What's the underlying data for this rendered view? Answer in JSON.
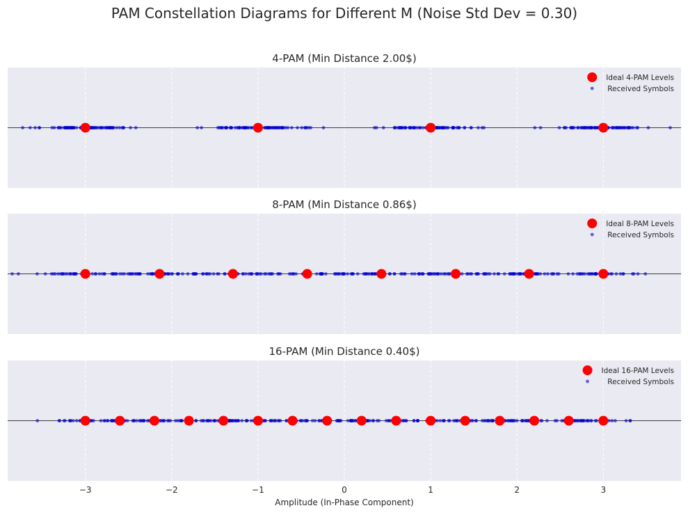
{
  "figure": {
    "title": "PAM Constellation Diagrams for Different M (Noise Std Dev = 0.30)",
    "xlabel": "Amplitude (In-Phase Component)",
    "colors": {
      "background": "#eaeaf2",
      "ideal": "#ff0000",
      "received": "#0000cc",
      "axis_line": "#000000",
      "grid": "#ffffff"
    }
  },
  "chart_data": [
    {
      "type": "scatter",
      "title": "4-PAM (Min Distance 2.00$)",
      "xlim": [
        -3.9,
        3.9
      ],
      "ylim": [
        -1,
        1
      ],
      "xticks": [
        -3,
        -2,
        -1,
        0,
        1,
        2,
        3
      ],
      "xtick_labels": [
        "−3",
        "−2",
        "−1",
        "0",
        "1",
        "2",
        "3"
      ],
      "grid": "vertical dashed",
      "legend_position": "upper-right",
      "series": [
        {
          "name": "Ideal 4-PAM Levels",
          "x": [
            -3,
            -1,
            1,
            3
          ]
        },
        {
          "name": "Received Symbols",
          "noise_std": 0.3,
          "count_per_level": 80,
          "y": 0
        }
      ]
    },
    {
      "type": "scatter",
      "title": "8-PAM (Min Distance 0.86$)",
      "xlim": [
        -3.9,
        3.9
      ],
      "ylim": [
        -1,
        1
      ],
      "xticks": [
        -3,
        -2,
        -1,
        0,
        1,
        2,
        3
      ],
      "xtick_labels": [
        "−3",
        "−2",
        "−1",
        "0",
        "1",
        "2",
        "3"
      ],
      "grid": "vertical dashed",
      "legend_position": "upper-right",
      "series": [
        {
          "name": "Ideal 8-PAM Levels",
          "x": [
            -3,
            -2.14,
            -1.29,
            -0.43,
            0.43,
            1.29,
            2.14,
            3
          ]
        },
        {
          "name": "Received Symbols",
          "noise_std": 0.3,
          "count_per_level": 40,
          "y": 0
        }
      ]
    },
    {
      "type": "scatter",
      "title": "16-PAM (Min Distance 0.40$)",
      "xlim": [
        -3.9,
        3.9
      ],
      "ylim": [
        -1,
        1
      ],
      "xticks": [
        -3,
        -2,
        -1,
        0,
        1,
        2,
        3
      ],
      "xtick_labels": [
        "−3",
        "−2",
        "−1",
        "0",
        "1",
        "2",
        "3"
      ],
      "grid": "vertical dashed",
      "legend_position": "upper-right",
      "series": [
        {
          "name": "Ideal 16-PAM Levels",
          "x": [
            -3,
            -2.6,
            -2.2,
            -1.8,
            -1.4,
            -1,
            -0.6,
            -0.2,
            0.2,
            0.6,
            1,
            1.4,
            1.8,
            2.2,
            2.6,
            3
          ]
        },
        {
          "name": "Received Symbols",
          "noise_std": 0.3,
          "count_per_level": 20,
          "y": 0
        }
      ]
    }
  ]
}
